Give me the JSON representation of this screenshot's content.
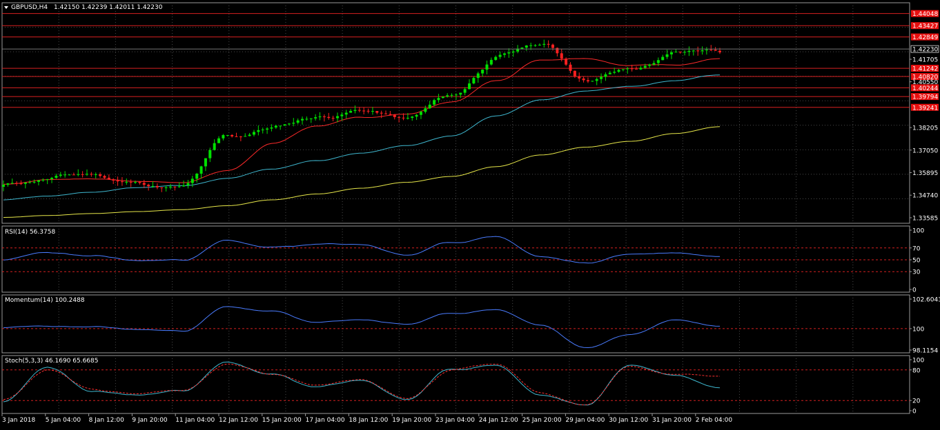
{
  "header": {
    "symbol": "GBPUSD,H4",
    "ohlc": "1.42150 1.42239 1.42011 1.42230"
  },
  "colors": {
    "background": "#000000",
    "grid": "#4a4a4a",
    "bull": "#00e000",
    "bear": "#ff2020",
    "ma_fast": "#ff2a2a",
    "ma_mid": "#3fb8d0",
    "ma_slow": "#e8e84a",
    "indicator": "#4a7cff",
    "stoch_signal": "#ff3030",
    "level_line": "#d82020",
    "price_tag": "#e81010"
  },
  "price_panel": {
    "ylim": [
      1.333,
      1.446
    ],
    "axis_ticks": [
      "1.41705",
      "1.40550",
      "1.38205",
      "1.37050",
      "1.35895",
      "1.34740",
      "1.33585"
    ],
    "last_price": "1.42230",
    "levels": [
      "1.44048",
      "1.43427",
      "1.42849",
      "1.41242",
      "1.40820",
      "1.40244",
      "1.39794",
      "1.39241"
    ]
  },
  "indicators": {
    "rsi": {
      "label": "RSI(14) 56.3758",
      "ticks": [
        "100",
        "70",
        "50",
        "30",
        "0"
      ],
      "levels": [
        70,
        50,
        30
      ]
    },
    "momentum": {
      "label": "Momentum(14) 100.2488",
      "ticks": [
        "102.6043",
        "100",
        "98.1154"
      ],
      "levels": [
        100
      ]
    },
    "stoch": {
      "label": "Stoch(5,3,3) 46.1690 65.6685",
      "ticks": [
        "100",
        "80",
        "20",
        "0"
      ],
      "levels": [
        80,
        20
      ]
    }
  },
  "x_axis": {
    "labels": [
      "3 Jan 2018",
      "5 Jan 04:00",
      "8 Jan 12:00",
      "9 Jan 20:00",
      "11 Jan 04:00",
      "12 Jan 12:00",
      "15 Jan 20:00",
      "17 Jan 04:00",
      "18 Jan 12:00",
      "19 Jan 20:00",
      "23 Jan 04:00",
      "24 Jan 12:00",
      "25 Jan 20:00",
      "29 Jan 04:00",
      "30 Jan 12:00",
      "31 Jan 20:00",
      "2 Feb 04:00"
    ]
  },
  "chart_data": {
    "type": "line",
    "title": "GBPUSD,H4",
    "x": [
      "3 Jan 2018",
      "5 Jan 04:00",
      "8 Jan 12:00",
      "9 Jan 20:00",
      "11 Jan 04:00",
      "12 Jan 12:00",
      "15 Jan 20:00",
      "17 Jan 04:00",
      "18 Jan 12:00",
      "19 Jan 20:00",
      "23 Jan 04:00",
      "24 Jan 12:00",
      "25 Jan 20:00",
      "29 Jan 04:00",
      "30 Jan 12:00",
      "31 Jan 20:00",
      "2 Feb 04:00"
    ],
    "close": [
      1.3525,
      1.3562,
      1.358,
      1.3535,
      1.351,
      1.376,
      1.382,
      1.388,
      1.391,
      1.3858,
      1.398,
      1.418,
      1.425,
      1.408,
      1.4115,
      1.419,
      1.4223
    ],
    "ma_fast": [
      1.353,
      1.3555,
      1.356,
      1.3545,
      1.354,
      1.36,
      1.374,
      1.383,
      1.387,
      1.389,
      1.395,
      1.406,
      1.417,
      1.418,
      1.414,
      1.4145,
      1.4175
    ],
    "ma_mid": [
      1.345,
      1.347,
      1.349,
      1.351,
      1.352,
      1.356,
      1.361,
      1.365,
      1.369,
      1.373,
      1.378,
      1.388,
      1.396,
      1.401,
      1.403,
      1.406,
      1.409
    ],
    "ma_slow": [
      1.336,
      1.337,
      1.338,
      1.339,
      1.34,
      1.342,
      1.345,
      1.348,
      1.351,
      1.354,
      1.357,
      1.362,
      1.368,
      1.372,
      1.375,
      1.379,
      1.3825
    ],
    "rsi": [
      50,
      62,
      55,
      48,
      50,
      82,
      70,
      75,
      76,
      58,
      78,
      90,
      55,
      44,
      60,
      62,
      56.4
    ],
    "momentum": [
      100.1,
      100.2,
      100.1,
      99.9,
      99.8,
      101.9,
      101.5,
      100.5,
      100.8,
      100.4,
      101.3,
      101.7,
      100.3,
      98.3,
      99.5,
      100.8,
      100.25
    ],
    "stoch_main": [
      18,
      85,
      35,
      30,
      40,
      94,
      70,
      45,
      60,
      22,
      80,
      90,
      30,
      10,
      90,
      70,
      46.2
    ],
    "stoch_signal": [
      22,
      80,
      40,
      33,
      38,
      92,
      72,
      48,
      58,
      25,
      78,
      88,
      35,
      12,
      88,
      72,
      65.7
    ]
  }
}
